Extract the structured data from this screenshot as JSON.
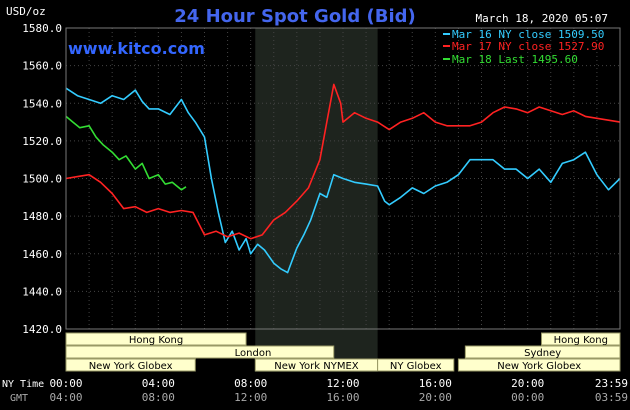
{
  "header": {
    "title": "24 Hour Spot Gold (Bid)",
    "unit": "USD/oz",
    "timestamp": "March 18, 2020 05:07",
    "watermark": "www.kitco.com"
  },
  "legend": [
    {
      "label": "Mar 16 NY close 1509.50",
      "color": "#33ccff"
    },
    {
      "label": "Mar 17 NY close 1527.90",
      "color": "#ff2222"
    },
    {
      "label": "Mar 18 Last 1495.60",
      "color": "#33dd33"
    }
  ],
  "colors": {
    "background": "#000000",
    "plot_bg": "#000000",
    "grid": "#444444",
    "nymex_shade": "#1e241e",
    "title": "#4466ee",
    "watermark": "#3366ff",
    "text": "#ffffff",
    "gmt_text": "#aaaaaa",
    "session_bar": "#ffffcc",
    "session_border": "#999966"
  },
  "sessions": [
    {
      "label": "Hong Kong",
      "from": 0,
      "to": 7.8
    },
    {
      "label": "Hong Kong",
      "from": 20.6,
      "to": 24
    },
    {
      "label": "London",
      "from": 0,
      "to": 11.6
    },
    {
      "label": "Sydney",
      "from": 17.3,
      "to": 24
    },
    {
      "label": "New York Globex",
      "from": 0,
      "to": 5.6
    },
    {
      "label": "New York NYMEX",
      "from": 8.2,
      "to": 13.5
    },
    {
      "label": "NY Globex",
      "from": 13.5,
      "to": 16.8
    },
    {
      "label": "New York Globex",
      "from": 17,
      "to": 24
    }
  ],
  "time_labels": {
    "ny_caption": "NY Time",
    "gmt_caption": "GMT",
    "ny": [
      "00:00",
      "04:00",
      "08:00",
      "12:00",
      "16:00",
      "20:00",
      "23:59"
    ],
    "gmt": [
      "04:00",
      "08:00",
      "12:00",
      "16:00",
      "20:00",
      "00:00",
      "03:59"
    ]
  },
  "chart_data": {
    "type": "line",
    "title": "24 Hour Spot Gold (Bid)",
    "ylabel": "USD/oz",
    "ylim": [
      1420,
      1580
    ],
    "xlim": [
      0,
      24
    ],
    "xticks": [
      0,
      4,
      8,
      12,
      16,
      20,
      24
    ],
    "yticks": [
      1420,
      1440,
      1460,
      1480,
      1500,
      1520,
      1540,
      1560,
      1580
    ],
    "grid": true,
    "nymex_window": [
      8.2,
      13.5
    ],
    "series": [
      {
        "name": "Mar 16 NY close 1509.50",
        "color": "#33ccff",
        "x": [
          0,
          0.5,
          1,
          1.5,
          2,
          2.5,
          3,
          3.3,
          3.6,
          4,
          4.5,
          5,
          5.3,
          5.6,
          6,
          6.3,
          6.6,
          6.9,
          7.2,
          7.5,
          7.8,
          8,
          8.3,
          8.6,
          9,
          9.3,
          9.6,
          10,
          10.3,
          10.6,
          11,
          11.3,
          11.6,
          12,
          12.5,
          13,
          13.5,
          13.8,
          14,
          14.5,
          15,
          15.5,
          16,
          16.5,
          17,
          17.5,
          18,
          18.5,
          19,
          19.5,
          20,
          20.5,
          21,
          21.5,
          22,
          22.5,
          23,
          23.5,
          24
        ],
        "values": [
          1548,
          1544,
          1542,
          1540,
          1544,
          1542,
          1547,
          1541,
          1537,
          1537,
          1534,
          1542,
          1535,
          1530,
          1522,
          1500,
          1482,
          1466,
          1472,
          1462,
          1468,
          1460,
          1465,
          1462,
          1455,
          1452,
          1450,
          1463,
          1470,
          1478,
          1492,
          1490,
          1502,
          1500,
          1498,
          1497,
          1496,
          1488,
          1486,
          1490,
          1495,
          1492,
          1496,
          1498,
          1502,
          1510,
          1510,
          1510,
          1505,
          1505,
          1500,
          1505,
          1498,
          1508,
          1510,
          1514,
          1502,
          1494,
          1500
        ]
      },
      {
        "name": "Mar 17 NY close 1527.90",
        "color": "#ff2222",
        "x": [
          0,
          0.5,
          1,
          1.5,
          2,
          2.5,
          3,
          3.5,
          4,
          4.5,
          5,
          5.5,
          6,
          6.5,
          7,
          7.5,
          8,
          8.5,
          9,
          9.5,
          10,
          10.5,
          11,
          11.3,
          11.6,
          11.9,
          12,
          12.5,
          13,
          13.5,
          14,
          14.5,
          15,
          15.5,
          16,
          16.5,
          17,
          17.5,
          18,
          18.5,
          19,
          19.5,
          20,
          20.5,
          21,
          21.5,
          22,
          22.5,
          23,
          23.5,
          24
        ],
        "values": [
          1500,
          1501,
          1502,
          1498,
          1492,
          1484,
          1485,
          1482,
          1484,
          1482,
          1483,
          1482,
          1470,
          1472,
          1469,
          1471,
          1468,
          1470,
          1478,
          1482,
          1488,
          1495,
          1510,
          1530,
          1550,
          1540,
          1530,
          1535,
          1532,
          1530,
          1526,
          1530,
          1532,
          1535,
          1530,
          1528,
          1528,
          1528,
          1530,
          1535,
          1538,
          1537,
          1535,
          1538,
          1536,
          1534,
          1536,
          1533,
          1532,
          1531,
          1530
        ]
      },
      {
        "name": "Mar 18 Last 1495.60",
        "color": "#33dd33",
        "x": [
          0,
          0.3,
          0.6,
          1,
          1.3,
          1.6,
          2,
          2.3,
          2.6,
          3,
          3.3,
          3.6,
          4,
          4.3,
          4.6,
          5,
          5.2
        ],
        "values": [
          1533,
          1530,
          1527,
          1528,
          1522,
          1518,
          1514,
          1510,
          1512,
          1505,
          1508,
          1500,
          1502,
          1497,
          1498,
          1494,
          1495.6
        ]
      }
    ]
  }
}
